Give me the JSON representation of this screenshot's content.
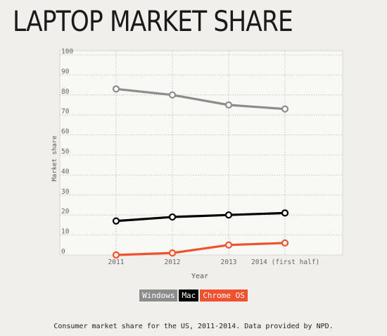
{
  "title": "LAPTOP MARKET SHARE",
  "caption": "Consumer market share for the US, 2011-2014. Data provided by NPD.",
  "legend": [
    {
      "label": "Windows",
      "color": "#8c8c8c"
    },
    {
      "label": "Mac",
      "color": "#000000"
    },
    {
      "label": "Chrome OS",
      "color": "#f0522f"
    }
  ],
  "chart_data": {
    "type": "line",
    "xlabel": "Year",
    "ylabel": "Market share",
    "categories": [
      "2011",
      "2012",
      "2013",
      "2014 (first half)"
    ],
    "ylim": [
      0,
      100
    ],
    "yticks": [
      0,
      10,
      20,
      30,
      40,
      50,
      60,
      70,
      80,
      90,
      100
    ],
    "grid": true,
    "legend_position": "bottom",
    "series": [
      {
        "name": "Windows",
        "color": "#8c8c8c",
        "values": [
          83,
          80,
          75,
          73
        ]
      },
      {
        "name": "Mac",
        "color": "#000000",
        "values": [
          17,
          19,
          20,
          21
        ]
      },
      {
        "name": "Chrome OS",
        "color": "#f0522f",
        "values": [
          0,
          1,
          5,
          6
        ]
      }
    ]
  }
}
